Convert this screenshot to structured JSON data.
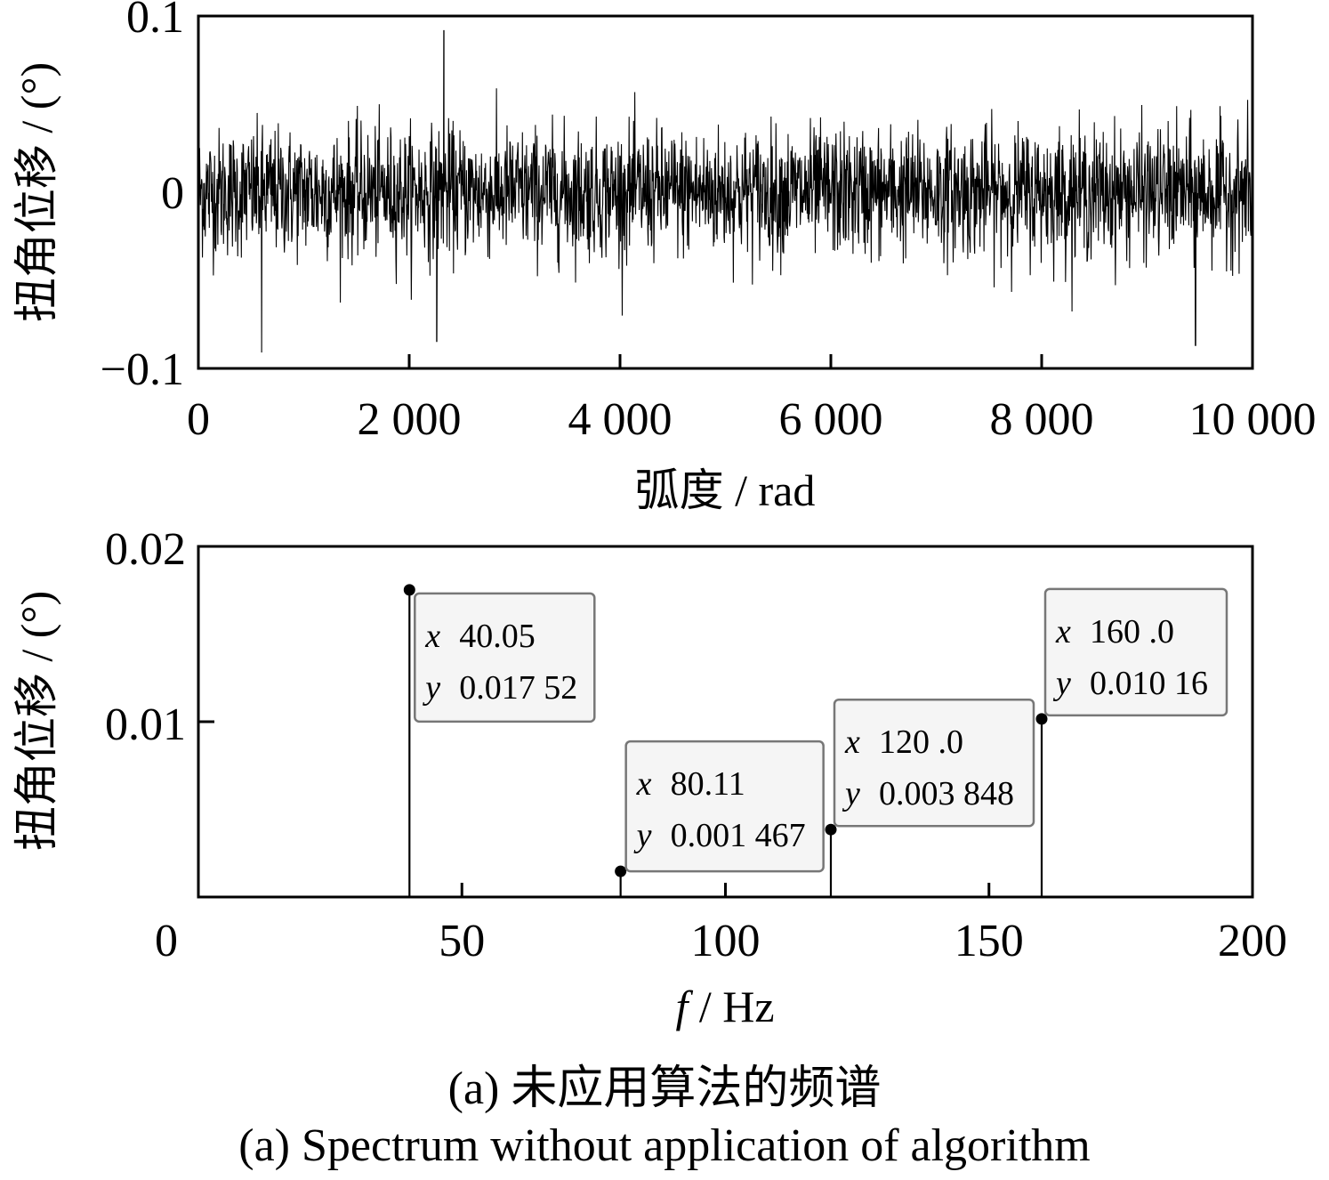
{
  "chart_data": [
    {
      "type": "line",
      "xlabel": "弧度 / rad",
      "ylabel": "扭角位移 / (°)",
      "xlim": [
        0,
        10000
      ],
      "ylim": [
        -0.1,
        0.1
      ],
      "xticks": [
        "0",
        "2 000",
        "4 000",
        "6 000",
        "8 000",
        "10 000"
      ],
      "yticks": [
        "0.1",
        "0",
        "−0.1"
      ],
      "series": [
        {
          "description_values": "dense noise signal around 0 with envelope approx ±0.05",
          "x": [
            0,
            10000
          ],
          "y_range": [
            -0.09,
            0.092
          ],
          "notable_peaks": [
            {
              "x": 2330,
              "y": 0.092
            },
            {
              "x": 600,
              "y": -0.091
            },
            {
              "x": 2260,
              "y": -0.085
            },
            {
              "x": 9460,
              "y": -0.087
            }
          ]
        }
      ],
      "grid": false
    },
    {
      "type": "stem",
      "xlabel_italic": "f",
      "xlabel_rest": " / Hz",
      "ylabel": "扭角位移 / (°)",
      "xlim": [
        0,
        200
      ],
      "ylim": [
        0,
        0.02
      ],
      "xticks": [
        "0",
        "50",
        "100",
        "150",
        "200"
      ],
      "yticks": [
        "0.02",
        "0.01"
      ],
      "points": [
        {
          "x": 40.05,
          "y": 0.01752,
          "label_x": "40.05",
          "label_y": "0.017 52"
        },
        {
          "x": 80.11,
          "y": 0.001467,
          "label_x": "80.11",
          "label_y": "0.001 467"
        },
        {
          "x": 120.0,
          "y": 0.003848,
          "label_x": "120 .0",
          "label_y": "0.003 848"
        },
        {
          "x": 160.0,
          "y": 0.01016,
          "label_x": "160 .0",
          "label_y": "0.010 16"
        }
      ],
      "grid": false
    }
  ],
  "captions": {
    "zh": "(a)  未应用算法的频谱",
    "en": "(a)  Spectrum without application of algorithm"
  }
}
